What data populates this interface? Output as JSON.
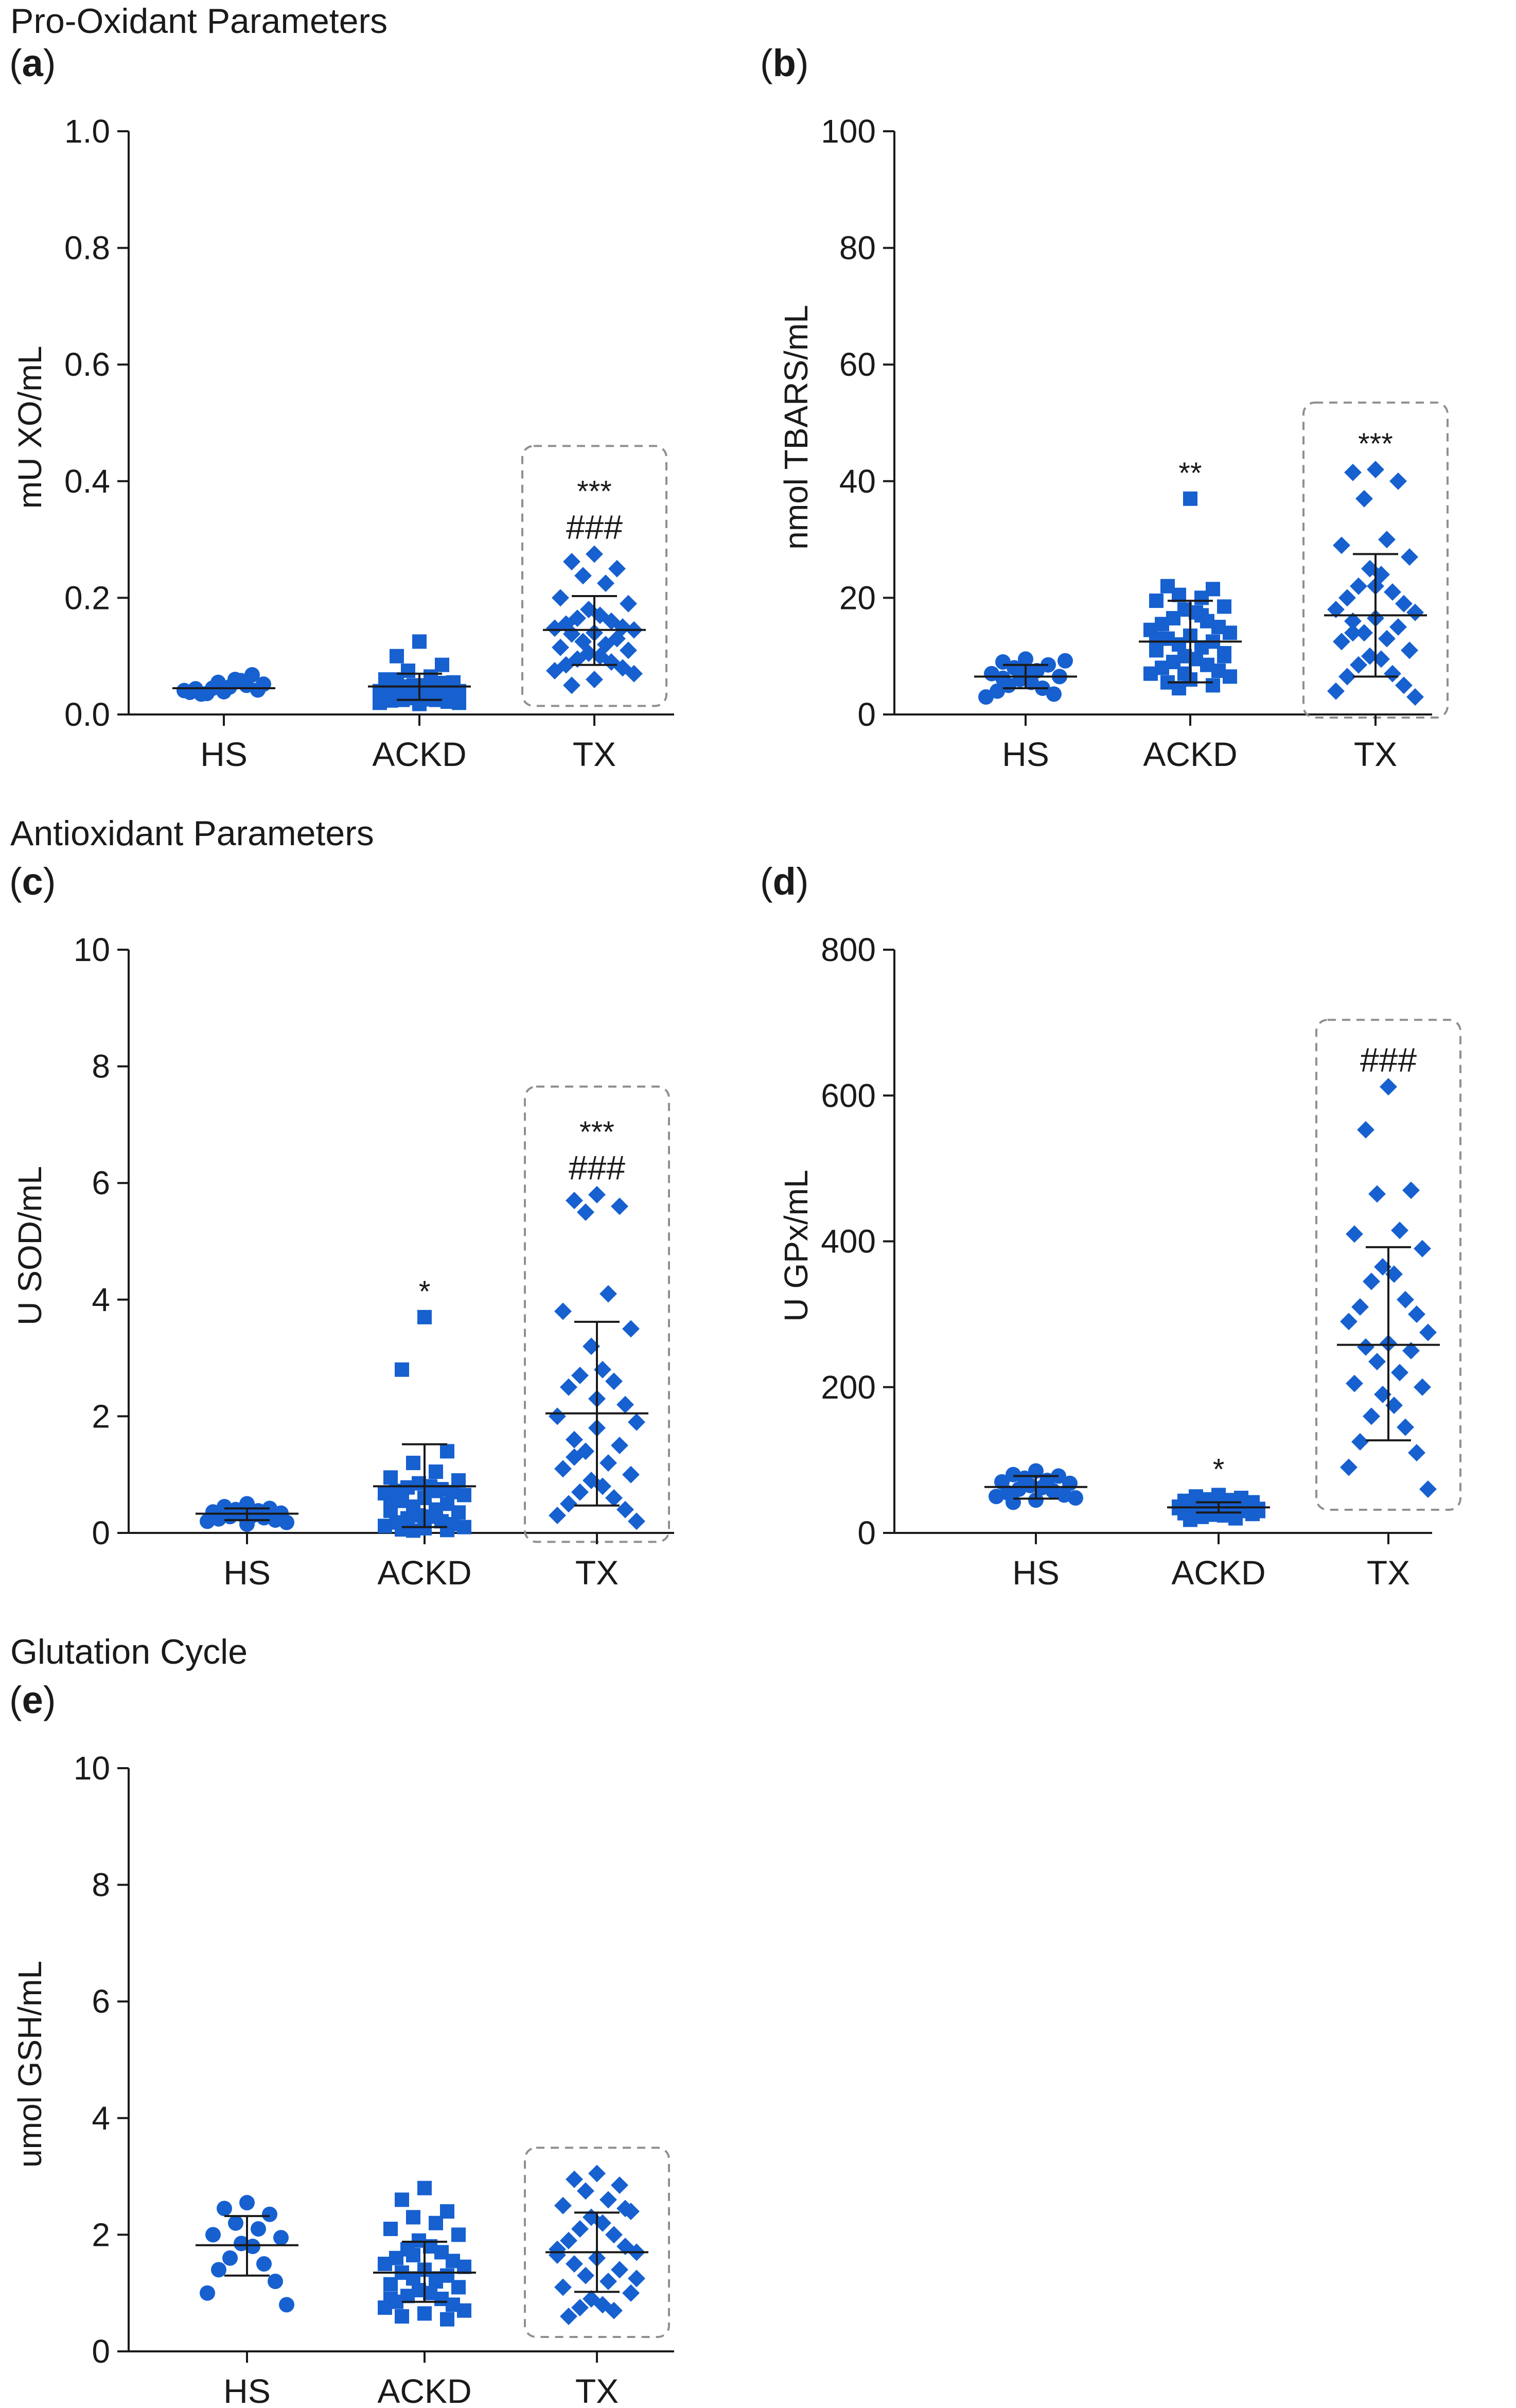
{
  "sections": {
    "pro": "Pro-Oxidant Parameters",
    "anti": "Antioxidant Parameters",
    "glut": "Glutation Cycle"
  },
  "colors": {
    "points": "#1660d0",
    "box": "#8f8f8f",
    "axis": "#1a1a1a"
  },
  "chart_data": [
    {
      "id": "a",
      "type": "scatter",
      "title": "(a)",
      "ylabel": "mU XO/mL",
      "categories": [
        "HS",
        "ACKD",
        "TX"
      ],
      "ylim": [
        0,
        1.0
      ],
      "yticks": [
        0.0,
        0.2,
        0.4,
        0.6,
        0.8,
        1.0
      ],
      "ytick_labels": [
        "0.0",
        "0.2",
        "0.4",
        "0.6",
        "0.8",
        "1.0"
      ],
      "mean": [
        0.045,
        0.048,
        0.145
      ],
      "sd": [
        [
          0.045,
          0.045
        ],
        [
          0.025,
          0.07
        ],
        [
          0.085,
          0.203
        ]
      ],
      "annotations": [
        [],
        [],
        [
          "***",
          "###"
        ]
      ],
      "highlight": [
        "TX"
      ],
      "series": [
        {
          "name": "HS",
          "marker": "circle",
          "values": [
            0.04,
            0.035,
            0.05,
            0.045,
            0.06,
            0.038,
            0.042,
            0.055,
            0.047,
            0.036,
            0.058,
            0.044,
            0.068,
            0.041,
            0.052,
            0.039
          ]
        },
        {
          "name": "ACKD",
          "marker": "square",
          "values": [
            0.125,
            0.1,
            0.085,
            0.075,
            0.065,
            0.06,
            0.055,
            0.05,
            0.05,
            0.048,
            0.045,
            0.045,
            0.042,
            0.04,
            0.04,
            0.038,
            0.036,
            0.035,
            0.033,
            0.032,
            0.03,
            0.03,
            0.028,
            0.026,
            0.025,
            0.025,
            0.024,
            0.022,
            0.02,
            0.02,
            0.018,
            0.06,
            0.054,
            0.046,
            0.038,
            0.034
          ]
        },
        {
          "name": "TX",
          "marker": "diamond",
          "values": [
            0.275,
            0.262,
            0.25,
            0.238,
            0.225,
            0.2,
            0.19,
            0.18,
            0.17,
            0.165,
            0.16,
            0.155,
            0.15,
            0.148,
            0.145,
            0.14,
            0.138,
            0.13,
            0.125,
            0.12,
            0.115,
            0.11,
            0.105,
            0.1,
            0.095,
            0.09,
            0.085,
            0.08,
            0.075,
            0.07,
            0.06,
            0.05
          ]
        }
      ]
    },
    {
      "id": "b",
      "type": "scatter",
      "title": "(b)",
      "ylabel": "nmol TBARS/mL",
      "categories": [
        "HS",
        "ACKD",
        "TX"
      ],
      "ylim": [
        0,
        100
      ],
      "yticks": [
        0,
        20,
        40,
        60,
        80,
        100
      ],
      "ytick_labels": [
        "0",
        "20",
        "40",
        "60",
        "80",
        "100"
      ],
      "mean": [
        6.5,
        12.5,
        17.0
      ],
      "sd": [
        [
          4.5,
          8.5
        ],
        [
          5.5,
          19.5
        ],
        [
          6.5,
          27.5
        ]
      ],
      "annotations": [
        [],
        [
          "**"
        ],
        [
          "***"
        ]
      ],
      "highlight": [
        "TX"
      ],
      "series": [
        {
          "name": "HS",
          "marker": "circle",
          "values": [
            9.5,
            9.0,
            8.5,
            8.0,
            7.5,
            7.0,
            6.5,
            6.0,
            5.5,
            5.0,
            4.5,
            4.0,
            3.5,
            3.0,
            9.2,
            7.8,
            6.2
          ]
        },
        {
          "name": "ACKD",
          "marker": "square",
          "values": [
            37.0,
            22.0,
            21.5,
            20.5,
            20.0,
            19.5,
            18.5,
            18.0,
            17.5,
            16.5,
            16.0,
            15.5,
            15.0,
            14.5,
            14.0,
            13.5,
            13.0,
            12.5,
            12.0,
            11.5,
            11.0,
            10.5,
            10.0,
            9.5,
            9.0,
            8.5,
            8.0,
            7.5,
            7.0,
            6.5,
            6.0,
            5.5,
            5.0,
            4.5,
            17.0,
            13.0,
            10.0,
            7.0
          ]
        },
        {
          "name": "TX",
          "marker": "diamond",
          "values": [
            42.0,
            41.5,
            40.0,
            37.0,
            30.0,
            29.0,
            27.0,
            25.0,
            24.0,
            22.0,
            21.0,
            20.0,
            19.0,
            18.0,
            17.5,
            16.5,
            16.0,
            15.0,
            14.0,
            13.0,
            12.5,
            11.0,
            10.0,
            9.5,
            8.5,
            7.0,
            6.5,
            5.0,
            4.0,
            3.0,
            22.0,
            14.0
          ]
        }
      ]
    },
    {
      "id": "c",
      "type": "scatter",
      "title": "(c)",
      "ylabel": "U SOD/mL",
      "categories": [
        "HS",
        "ACKD",
        "TX"
      ],
      "ylim": [
        0,
        10
      ],
      "yticks": [
        0,
        2,
        4,
        6,
        8,
        10
      ],
      "ytick_labels": [
        "0",
        "2",
        "4",
        "6",
        "8",
        "10"
      ],
      "mean": [
        0.33,
        0.8,
        2.05
      ],
      "sd": [
        [
          0.22,
          0.42
        ],
        [
          0.1,
          1.52
        ],
        [
          0.47,
          3.62
        ]
      ],
      "annotations": [
        [],
        [
          "*"
        ],
        [
          "***",
          "###"
        ]
      ],
      "highlight": [
        "TX"
      ],
      "series": [
        {
          "name": "HS",
          "marker": "circle",
          "values": [
            0.5,
            0.45,
            0.42,
            0.4,
            0.38,
            0.36,
            0.34,
            0.32,
            0.3,
            0.28,
            0.26,
            0.24,
            0.22,
            0.2,
            0.18,
            0.15
          ]
        },
        {
          "name": "ACKD",
          "marker": "square",
          "values": [
            3.7,
            2.8,
            1.4,
            1.2,
            1.05,
            0.95,
            0.9,
            0.85,
            0.8,
            0.78,
            0.75,
            0.72,
            0.7,
            0.68,
            0.65,
            0.6,
            0.55,
            0.5,
            0.45,
            0.4,
            0.38,
            0.35,
            0.3,
            0.28,
            0.25,
            0.2,
            0.18,
            0.15,
            0.12,
            0.1,
            0.08,
            0.06,
            0.05,
            0.04,
            0.72,
            0.62
          ]
        },
        {
          "name": "TX",
          "marker": "diamond",
          "values": [
            5.8,
            5.7,
            5.6,
            5.5,
            4.1,
            3.8,
            3.5,
            3.2,
            2.8,
            2.7,
            2.6,
            2.5,
            2.2,
            2.0,
            1.9,
            1.8,
            1.6,
            1.5,
            1.4,
            1.2,
            1.1,
            1.0,
            0.9,
            0.8,
            0.7,
            0.6,
            0.5,
            0.4,
            0.3,
            0.2,
            2.3,
            1.3
          ]
        }
      ]
    },
    {
      "id": "d",
      "type": "scatter",
      "title": "(d)",
      "ylabel": "U GPx/mL",
      "categories": [
        "HS",
        "ACKD",
        "TX"
      ],
      "ylim": [
        0,
        800
      ],
      "yticks": [
        0,
        200,
        400,
        600,
        800
      ],
      "ytick_labels": [
        "0",
        "200",
        "400",
        "600",
        "800"
      ],
      "mean": [
        63,
        35,
        258
      ],
      "sd": [
        [
          47,
          78
        ],
        [
          28,
          42
        ],
        [
          127,
          392
        ]
      ],
      "annotations": [
        [],
        [
          "*"
        ],
        [
          "###"
        ]
      ],
      "highlight": [
        "TX"
      ],
      "series": [
        {
          "name": "HS",
          "marker": "circle",
          "values": [
            85,
            80,
            78,
            75,
            72,
            70,
            68,
            65,
            62,
            60,
            58,
            55,
            52,
            50,
            48,
            45,
            42
          ]
        },
        {
          "name": "ACKD",
          "marker": "square",
          "values": [
            52,
            50,
            48,
            46,
            45,
            44,
            42,
            40,
            39,
            38,
            37,
            36,
            35,
            34,
            33,
            32,
            31,
            30,
            29,
            28,
            27,
            26,
            25,
            24,
            22,
            20,
            18,
            41,
            36,
            30
          ]
        },
        {
          "name": "TX",
          "marker": "diamond",
          "values": [
            612,
            553,
            470,
            465,
            415,
            410,
            390,
            365,
            355,
            345,
            320,
            310,
            300,
            290,
            275,
            260,
            255,
            250,
            235,
            220,
            205,
            200,
            190,
            175,
            160,
            145,
            125,
            110,
            90,
            60
          ]
        }
      ]
    },
    {
      "id": "e",
      "type": "scatter",
      "title": "(e)",
      "ylabel": "umol GSH/mL",
      "categories": [
        "HS",
        "ACKD",
        "TX"
      ],
      "ylim": [
        0,
        10
      ],
      "yticks": [
        0,
        2,
        4,
        6,
        8,
        10
      ],
      "ytick_labels": [
        "0",
        "2",
        "4",
        "6",
        "8",
        "10"
      ],
      "mean": [
        1.82,
        1.35,
        1.7
      ],
      "sd": [
        [
          1.3,
          2.32
        ],
        [
          0.85,
          1.88
        ],
        [
          1.02,
          2.38
        ]
      ],
      "annotations": [
        [],
        [],
        []
      ],
      "highlight": [
        "TX"
      ],
      "series": [
        {
          "name": "HS",
          "marker": "circle",
          "values": [
            2.55,
            2.45,
            2.35,
            2.2,
            2.1,
            2.0,
            1.95,
            1.85,
            1.8,
            1.6,
            1.5,
            1.4,
            1.2,
            1.0,
            0.8
          ]
        },
        {
          "name": "ACKD",
          "marker": "square",
          "values": [
            2.8,
            2.6,
            2.4,
            2.3,
            2.2,
            2.1,
            2.0,
            1.9,
            1.8,
            1.75,
            1.7,
            1.6,
            1.55,
            1.5,
            1.45,
            1.4,
            1.35,
            1.3,
            1.25,
            1.2,
            1.15,
            1.1,
            1.05,
            1.0,
            0.95,
            0.9,
            0.85,
            0.8,
            0.75,
            0.7,
            0.65,
            0.6,
            0.55,
            1.65,
            1.25,
            0.9
          ]
        },
        {
          "name": "TX",
          "marker": "diamond",
          "values": [
            3.05,
            2.95,
            2.85,
            2.75,
            2.6,
            2.5,
            2.4,
            2.3,
            2.2,
            2.1,
            2.0,
            1.9,
            1.8,
            1.75,
            1.7,
            1.6,
            1.5,
            1.4,
            1.3,
            1.2,
            1.1,
            1.0,
            0.9,
            0.8,
            0.75,
            0.7,
            0.6,
            2.45,
            1.65,
            1.25
          ]
        }
      ]
    }
  ]
}
